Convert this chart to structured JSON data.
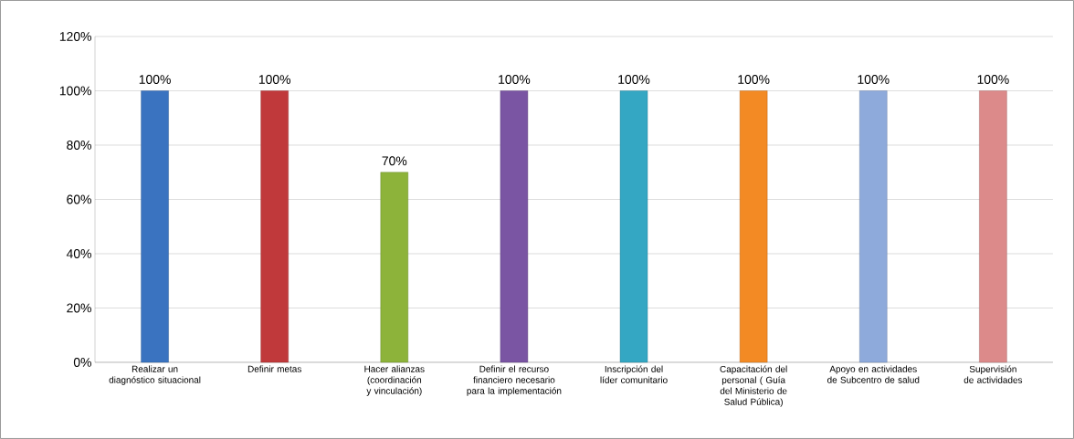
{
  "chart_data": {
    "type": "bar",
    "categories": [
      "Realizar un diagnóstico situacional",
      "Definir metas",
      "Hacer alianzas (coordinación y vinculación)",
      "Definir el recurso financiero necesario para la implementación",
      "Inscripción del líder comunitario",
      "Capacitación del personal ( Guía del Ministerio de Salud Pública)",
      "Apoyo en actividades de Subcentro de salud",
      "Supervisión de actividades"
    ],
    "values": [
      100,
      100,
      70,
      100,
      100,
      100,
      100,
      100
    ],
    "colors": [
      "#3a73c0",
      "#c0393b",
      "#8db33a",
      "#7a55a3",
      "#34a7c3",
      "#f38a24",
      "#8eaadb",
      "#dc8a8a"
    ],
    "value_labels": [
      "100%",
      "100%",
      "70%",
      "100%",
      "100%",
      "100%",
      "100%",
      "100%"
    ],
    "ylim": [
      0,
      120
    ],
    "yticks": [
      {
        "value": 0,
        "label": "0%"
      },
      {
        "value": 20,
        "label": "20%"
      },
      {
        "value": 40,
        "label": "40%"
      },
      {
        "value": 60,
        "label": "60%"
      },
      {
        "value": 80,
        "label": "80%"
      },
      {
        "value": 100,
        "label": "100%"
      },
      {
        "value": 120,
        "label": "120%"
      }
    ],
    "grid": "y"
  }
}
